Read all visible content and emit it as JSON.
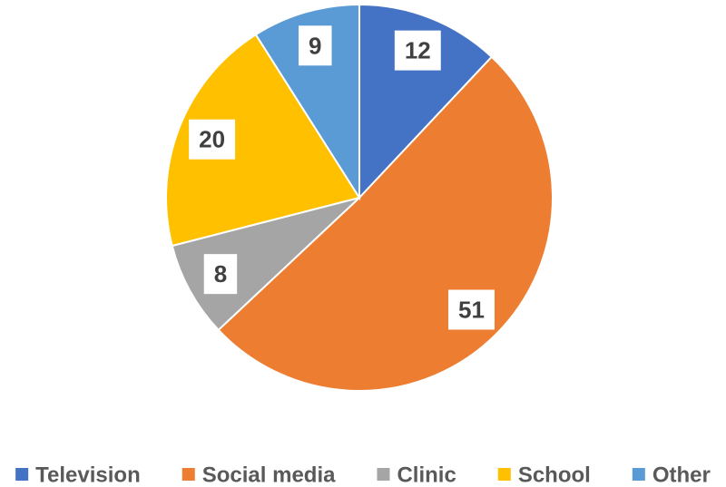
{
  "chart_data": {
    "type": "pie",
    "categories": [
      "Television",
      "Social media",
      "Clinic",
      "School",
      "Other"
    ],
    "values": [
      12,
      51,
      8,
      20,
      9
    ],
    "colors": [
      "#4472c4",
      "#ed7d31",
      "#a5a5a5",
      "#ffc000",
      "#5b9bd5"
    ],
    "legend": "bottom"
  }
}
